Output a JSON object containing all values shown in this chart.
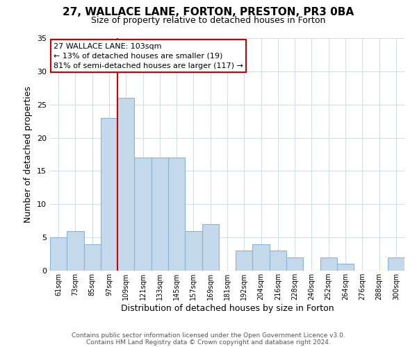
{
  "title": "27, WALLACE LANE, FORTON, PRESTON, PR3 0BA",
  "subtitle": "Size of property relative to detached houses in Forton",
  "xlabel": "Distribution of detached houses by size in Forton",
  "ylabel": "Number of detached properties",
  "bar_labels": [
    "61sqm",
    "73sqm",
    "85sqm",
    "97sqm",
    "109sqm",
    "121sqm",
    "133sqm",
    "145sqm",
    "157sqm",
    "169sqm",
    "181sqm",
    "192sqm",
    "204sqm",
    "216sqm",
    "228sqm",
    "240sqm",
    "252sqm",
    "264sqm",
    "276sqm",
    "288sqm",
    "300sqm"
  ],
  "bar_values": [
    5,
    6,
    4,
    23,
    26,
    17,
    17,
    17,
    6,
    7,
    0,
    3,
    4,
    3,
    2,
    0,
    2,
    1,
    0,
    0,
    2
  ],
  "bar_color": "#c5d9ed",
  "bar_edge_color": "#8ab4d4",
  "ylim": [
    0,
    35
  ],
  "yticks": [
    0,
    5,
    10,
    15,
    20,
    25,
    30,
    35
  ],
  "vline_x": 4,
  "vline_color": "#cc0000",
  "annotation_box_text": "27 WALLACE LANE: 103sqm\n← 13% of detached houses are smaller (19)\n81% of semi-detached houses are larger (117) →",
  "annotation_box_color": "#ffffff",
  "annotation_box_edge_color": "#cc0000",
  "footer1": "Contains HM Land Registry data © Crown copyright and database right 2024.",
  "footer2": "Contains public sector information licensed under the Open Government Licence v3.0.",
  "background_color": "#ffffff",
  "grid_color": "#d0dce8"
}
